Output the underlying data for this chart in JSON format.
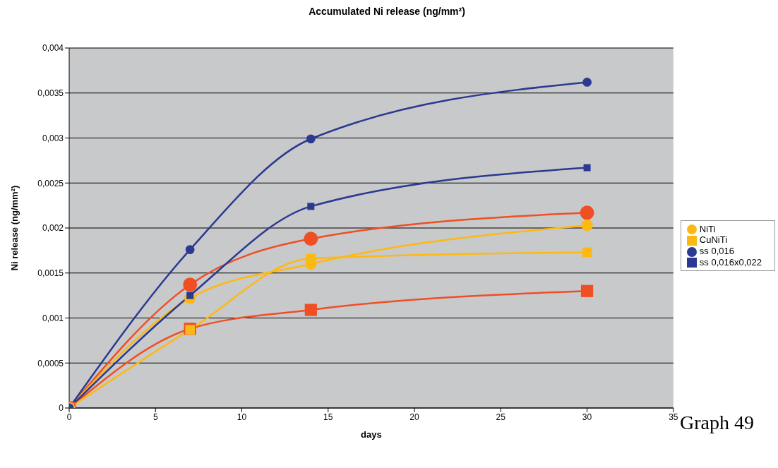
{
  "chart_data": {
    "type": "line",
    "title": "Accumulated Ni release (ng/mm²)",
    "xlabel": "days",
    "ylabel": "Ni release (ng/mm²)",
    "x": [
      0,
      7,
      14,
      30
    ],
    "series": [
      {
        "color": "#f04e23",
        "marker": "circle",
        "values": [
          0,
          0.00137,
          0.00188,
          0.00217
        ]
      },
      {
        "color": "#f04e23",
        "marker": "square",
        "values": [
          0,
          0.00088,
          0.00109,
          0.0013
        ]
      },
      {
        "name": "NiTi",
        "color": "#fdb913",
        "marker": "circle",
        "values": [
          0,
          0.00122,
          0.0016,
          0.00203
        ]
      },
      {
        "name": "CuNiTi",
        "color": "#fdb913",
        "marker": "square",
        "values": [
          0,
          0.00087,
          0.00166,
          0.00173
        ]
      },
      {
        "name": "ss 0,016",
        "color": "#2b3990",
        "marker": "circle",
        "values": [
          0,
          0.00176,
          0.00299,
          0.00362
        ]
      },
      {
        "name": "ss 0,016x0,022",
        "color": "#2b3990",
        "marker": "square",
        "values": [
          0,
          0.00125,
          0.00224,
          0.00267
        ]
      }
    ],
    "xlim": [
      0,
      35
    ],
    "xticks": [
      0,
      5,
      10,
      15,
      20,
      25,
      30,
      35
    ],
    "ylim": [
      0,
      0.004
    ],
    "yticks": [
      {
        "value": 0,
        "label": "0"
      },
      {
        "value": 0.0005,
        "label": "0,0005"
      },
      {
        "value": 0.001,
        "label": "0,001"
      },
      {
        "value": 0.0015,
        "label": "0,0015"
      },
      {
        "value": 0.002,
        "label": "0,002"
      },
      {
        "value": 0.0025,
        "label": "0,0025"
      },
      {
        "value": 0.003,
        "label": "0,003"
      },
      {
        "value": 0.0035,
        "label": "0,0035"
      },
      {
        "value": 0.004,
        "label": "0,004"
      }
    ],
    "grid": "y",
    "legend": "right",
    "line_style": "solid",
    "annotations": [
      "Graph 49"
    ]
  }
}
